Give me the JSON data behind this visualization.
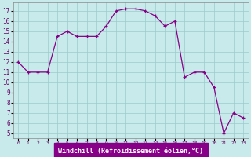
{
  "x": [
    0,
    1,
    2,
    3,
    4,
    5,
    6,
    7,
    8,
    9,
    10,
    11,
    12,
    13,
    14,
    15,
    16,
    17,
    18,
    19,
    20,
    21,
    22,
    23
  ],
  "y": [
    12,
    11,
    11,
    11,
    14.5,
    15,
    14.5,
    14.5,
    14.5,
    15.5,
    17,
    17.2,
    17.2,
    17,
    16.5,
    15.5,
    16,
    10.5,
    11,
    11,
    9.5,
    5,
    7,
    6.5
  ],
  "line_color": "#880088",
  "marker_color": "#880088",
  "bg_color": "#c8eaea",
  "grid_color": "#99cccc",
  "xlabel": "Windchill (Refroidissement éolien,°C)",
  "ylim": [
    4.5,
    17.8
  ],
  "xlim": [
    -0.5,
    23.5
  ],
  "yticks": [
    5,
    6,
    7,
    8,
    9,
    10,
    11,
    12,
    13,
    14,
    15,
    16,
    17
  ],
  "xticks": [
    0,
    1,
    2,
    3,
    4,
    5,
    6,
    7,
    8,
    9,
    10,
    11,
    12,
    13,
    14,
    15,
    16,
    17,
    18,
    19,
    20,
    21,
    22,
    23
  ],
  "xlabel_color": "#ffffff",
  "xlabel_bg": "#880088"
}
